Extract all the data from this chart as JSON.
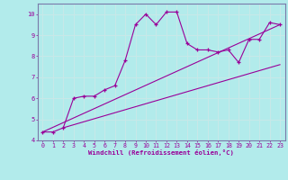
{
  "xlabel": "Windchill (Refroidissement éolien,°C)",
  "bg_color": "#b2ebeb",
  "line_color": "#990099",
  "grid_color": "#c8e8e8",
  "spine_color": "#7a7aaa",
  "xlim": [
    -0.5,
    23.5
  ],
  "ylim": [
    4.0,
    10.5
  ],
  "xticks": [
    0,
    1,
    2,
    3,
    4,
    5,
    6,
    7,
    8,
    9,
    10,
    11,
    12,
    13,
    14,
    15,
    16,
    17,
    18,
    19,
    20,
    21,
    22,
    23
  ],
  "yticks": [
    4,
    5,
    6,
    7,
    8,
    9,
    10
  ],
  "line1_x": [
    0,
    1,
    2,
    3,
    4,
    5,
    6,
    7,
    8,
    9,
    10,
    11,
    12,
    13,
    14,
    15,
    16,
    17,
    18,
    19,
    20,
    21,
    22,
    23
  ],
  "line1_y": [
    4.4,
    4.4,
    4.6,
    6.0,
    6.1,
    6.1,
    6.4,
    6.6,
    7.8,
    9.5,
    10.0,
    9.5,
    10.1,
    10.1,
    8.6,
    8.3,
    8.3,
    8.2,
    8.3,
    7.7,
    8.8,
    8.8,
    9.6,
    9.5
  ],
  "line2_x": [
    0,
    23
  ],
  "line2_y": [
    4.4,
    9.5
  ],
  "line3_x": [
    2,
    23
  ],
  "line3_y": [
    4.6,
    7.6
  ]
}
